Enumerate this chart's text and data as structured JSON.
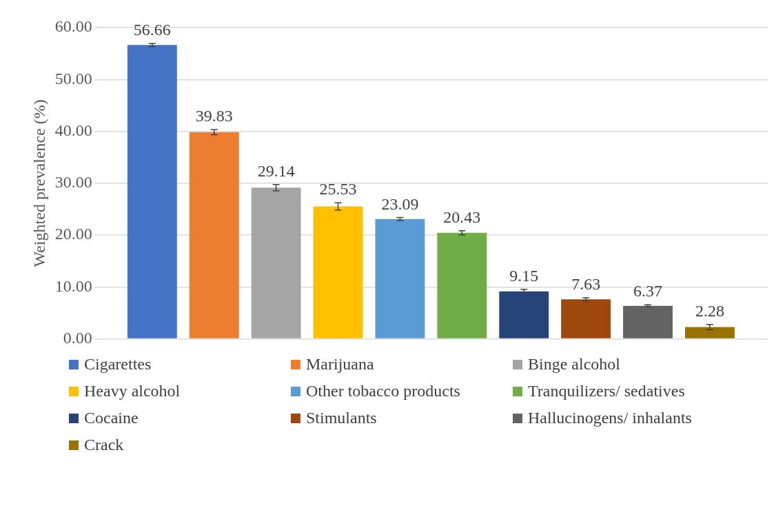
{
  "chart_data": {
    "type": "bar",
    "ylabel": "Weighted prevalence (%)",
    "categories": [
      null
    ],
    "ylim": [
      0,
      60
    ],
    "yticks": [
      {
        "value": 0,
        "label": "0.00"
      },
      {
        "value": 10,
        "label": "10.00"
      },
      {
        "value": 20,
        "label": "20.00"
      },
      {
        "value": 30,
        "label": "30.00"
      },
      {
        "value": 40,
        "label": "40.00"
      },
      {
        "value": 50,
        "label": "50.00"
      },
      {
        "value": 60,
        "label": "60.00"
      }
    ],
    "grid": "y",
    "legend": "bottom",
    "data_labels": true,
    "series": [
      {
        "name": "Cigarettes",
        "color": "#4472c4",
        "values": [
          56.66
        ],
        "errors": [
          0.3
        ]
      },
      {
        "name": "Marijuana",
        "color": "#ed7d31",
        "values": [
          39.83
        ],
        "errors": [
          0.5
        ]
      },
      {
        "name": "Binge alcohol",
        "color": "#a5a5a5",
        "values": [
          29.14
        ],
        "errors": [
          0.6
        ]
      },
      {
        "name": "Heavy alcohol",
        "color": "#ffc000",
        "values": [
          25.53
        ],
        "errors": [
          0.7
        ]
      },
      {
        "name": "Other tobacco products",
        "color": "#5b9bd5",
        "values": [
          23.09
        ],
        "errors": [
          0.3
        ]
      },
      {
        "name": "Tranquilizers/ sedatives",
        "color": "#70ad47",
        "values": [
          20.43
        ],
        "errors": [
          0.4
        ]
      },
      {
        "name": "Cocaine",
        "color": "#264478",
        "values": [
          9.15
        ],
        "errors": [
          0.4
        ]
      },
      {
        "name": "Stimulants",
        "color": "#9e480e",
        "values": [
          7.63
        ],
        "errors": [
          0.3
        ]
      },
      {
        "name": "Hallucinogens/ inhalants",
        "color": "#636363",
        "values": [
          6.37
        ],
        "errors": [
          0.2
        ]
      },
      {
        "name": "Crack",
        "color": "#997300",
        "values": [
          2.28
        ],
        "errors": [
          0.5
        ]
      }
    ]
  }
}
